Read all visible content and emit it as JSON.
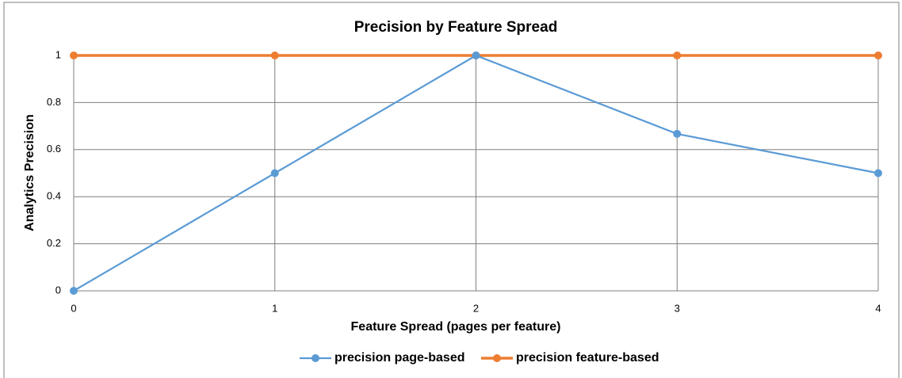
{
  "chart_data": {
    "type": "line",
    "title": "Precision by Feature Spread",
    "xlabel": "Feature Spread (pages per feature)",
    "ylabel": "Analytics  Precision",
    "x": [
      0,
      1,
      2,
      3,
      4
    ],
    "series": [
      {
        "name": "precision page-based",
        "color": "#5b9bd5",
        "values": [
          0,
          0.5,
          1,
          0.667,
          0.5
        ]
      },
      {
        "name": "precision feature-based",
        "color": "#ed7d31",
        "values": [
          1,
          1,
          1,
          1,
          1
        ]
      }
    ],
    "xlim": [
      0,
      4
    ],
    "xticks": [
      0,
      1,
      2,
      3,
      4
    ],
    "ylim": [
      0,
      1
    ],
    "yticks": [
      0,
      0.2,
      0.4,
      0.6,
      0.8,
      1
    ],
    "grid": true,
    "legend": "bottom"
  }
}
